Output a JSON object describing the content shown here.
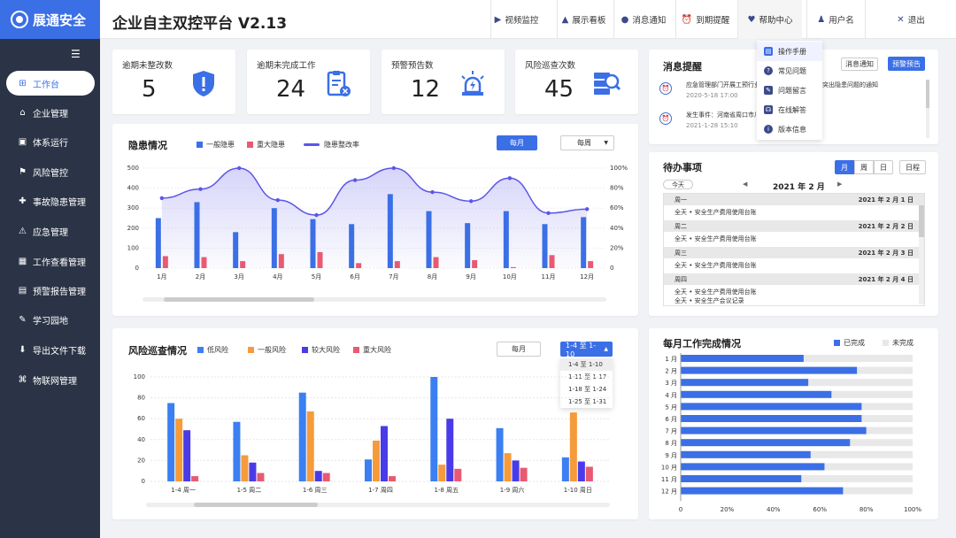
{
  "app": {
    "logo": "展通安全",
    "title": "企业自主双控平台 V2.13"
  },
  "topnav": [
    {
      "label": "视频监控",
      "icon": "video-icon"
    },
    {
      "label": "展示看板",
      "icon": "board-icon"
    },
    {
      "label": "消息通知",
      "icon": "message-icon"
    },
    {
      "label": "到期提醒",
      "icon": "alarm-icon"
    },
    {
      "label": "帮助中心",
      "icon": "heart-icon"
    },
    {
      "label": "用户名",
      "icon": "user-icon"
    },
    {
      "label": "退出",
      "icon": "close-icon"
    }
  ],
  "help_menu": [
    {
      "label": "操作手册",
      "icon": "manual-icon",
      "color": "#3b6fe6"
    },
    {
      "label": "常见问题",
      "icon": "question-icon",
      "color": "#3b4a8a"
    },
    {
      "label": "问题留言",
      "icon": "edit-icon",
      "color": "#3b4a8a"
    },
    {
      "label": "在线解答",
      "icon": "headset-icon",
      "color": "#3b4a8a"
    },
    {
      "label": "版本信息",
      "icon": "info-icon",
      "color": "#3b4a8a"
    }
  ],
  "sidebar": [
    {
      "label": "工作台",
      "icon": "windows-icon",
      "active": true
    },
    {
      "label": "企业管理",
      "icon": "home-icon"
    },
    {
      "label": "体系运行",
      "icon": "system-icon"
    },
    {
      "label": "风险管控",
      "icon": "risk-icon"
    },
    {
      "label": "事故隐患管理",
      "icon": "accident-icon"
    },
    {
      "label": "应急管理",
      "icon": "emergency-icon"
    },
    {
      "label": "工作查看管理",
      "icon": "calendar-icon"
    },
    {
      "label": "预警报告管理",
      "icon": "report-icon"
    },
    {
      "label": "学习园地",
      "icon": "study-icon"
    },
    {
      "label": "导出文件下载",
      "icon": "download-icon"
    },
    {
      "label": "物联网管理",
      "icon": "iot-icon"
    }
  ],
  "stats": [
    {
      "label": "逾期未整改数",
      "value": "5",
      "icon": "shield-alert-icon"
    },
    {
      "label": "逾期未完成工作",
      "value": "24",
      "icon": "clipboard-x-icon"
    },
    {
      "label": "预警预告数",
      "value": "12",
      "icon": "siren-icon"
    },
    {
      "label": "风险巡查次数",
      "value": "45",
      "icon": "server-search-icon"
    }
  ],
  "hazard": {
    "title": "隐患情况",
    "legend": [
      "一般隐患",
      "重大隐患",
      "隐患整改率"
    ],
    "btn_monthly": "每月",
    "select_value": "每周",
    "colors": {
      "general": "#3b6fe6",
      "major": "#e85a72",
      "rate": "#5b55e8"
    }
  },
  "risk": {
    "title": "风险巡查情况",
    "legend": [
      "低风险",
      "一般风险",
      "较大风险",
      "重大风险"
    ],
    "btn_monthly": "每月",
    "select_value": "1-4 至 1-10",
    "options": [
      "1-4 至 1-10",
      "1-11 至 1-17",
      "1-18 至 1-24",
      "1-25 至 1-31"
    ],
    "colors": {
      "low": "#3b7ff2",
      "general": "#f59b3c",
      "big": "#4a3be8",
      "major": "#e85a72"
    }
  },
  "messages": {
    "title": "消息提醒",
    "btn_notice": "消息通知",
    "btn_warning": "预警预告",
    "items": [
      {
        "text": "应急管理部门开展工预行业……通报两个层面八类突出隐患问题的通知",
        "date": "2020-5-18    17:00"
      },
      {
        "text": "发生事件：河南省周口市川…………试",
        "date": "2021-1-28    15:10"
      }
    ]
  },
  "todo": {
    "title": "待办事项",
    "views": [
      "月",
      "周",
      "日"
    ],
    "btn_schedule": "日程",
    "today": "今天",
    "month": "2021 年 2 月",
    "days": [
      {
        "weekday": "周一",
        "date": "2021 年 2 月 1 日",
        "items": [
          "全天 • 安全生产费用使用台账"
        ]
      },
      {
        "weekday": "周二",
        "date": "2021 年 2 月 2 日",
        "items": [
          "全天 • 安全生产费用使用台账"
        ]
      },
      {
        "weekday": "周三",
        "date": "2021 年 2 月 3 日",
        "items": [
          "全天 • 安全生产费用使用台账"
        ]
      },
      {
        "weekday": "周四",
        "date": "2021 年 2 月 4 日",
        "items": [
          "全天 • 安全生产费用使用台账",
          "全天 • 安全生产会议记录"
        ]
      }
    ]
  },
  "monthly": {
    "title": "每月工作完成情况",
    "legend": [
      "已完成",
      "未完成"
    ],
    "colors": {
      "done": "#3b6fe6",
      "undone": "#e8e8e8"
    }
  },
  "chart_data": [
    {
      "type": "bar",
      "title": "隐患情况",
      "categories": [
        "1月",
        "2月",
        "3月",
        "4月",
        "5月",
        "6月",
        "7月",
        "8月",
        "9月",
        "10月",
        "11月",
        "12月"
      ],
      "series": [
        {
          "name": "一般隐患",
          "values": [
            250,
            330,
            180,
            300,
            245,
            220,
            370,
            285,
            225,
            285,
            220,
            255
          ]
        },
        {
          "name": "重大隐患",
          "values": [
            60,
            55,
            35,
            70,
            80,
            25,
            35,
            55,
            40,
            5,
            65,
            35
          ]
        },
        {
          "name": "隐患整改率",
          "values": [
            70,
            79,
            100,
            68,
            53,
            88,
            100,
            76,
            67,
            90,
            55,
            59
          ],
          "axis": "right",
          "type": "line"
        }
      ],
      "ylim": [
        0,
        500
      ],
      "yticks": [
        0,
        100,
        200,
        300,
        400,
        500
      ],
      "y2lim": [
        0,
        100
      ],
      "y2ticks": [
        "0",
        "20%",
        "40%",
        "60%",
        "80%",
        "100%"
      ],
      "grid": true
    },
    {
      "type": "bar",
      "title": "风险巡查情况",
      "categories": [
        "1-4  周一",
        "1-5  周二",
        "1-6  周三",
        "1-7  周四",
        "1-8  周五",
        "1-9  周六",
        "1-10  周日"
      ],
      "series": [
        {
          "name": "低风险",
          "values": [
            75,
            57,
            85,
            21,
            100,
            51,
            23
          ]
        },
        {
          "name": "一般风险",
          "values": [
            60,
            25,
            67,
            39,
            16,
            27,
            66
          ]
        },
        {
          "name": "较大风险",
          "values": [
            49,
            18,
            10,
            53,
            60,
            20,
            19
          ]
        },
        {
          "name": "重大风险",
          "values": [
            5,
            8,
            8,
            5,
            12,
            13,
            14
          ]
        }
      ],
      "ylim": [
        0,
        100
      ],
      "yticks": [
        0,
        20,
        40,
        60,
        80,
        100
      ],
      "grid": true
    },
    {
      "type": "bar",
      "title": "每月工作完成情况",
      "orientation": "horizontal",
      "categories": [
        "1 月",
        "2 月",
        "3 月",
        "4 月",
        "5 月",
        "6 月",
        "7 月",
        "8 月",
        "9 月",
        "10 月",
        "11 月",
        "12 月"
      ],
      "series": [
        {
          "name": "已完成",
          "values": [
            53,
            76,
            55,
            65,
            78,
            78,
            80,
            73,
            56,
            62,
            52,
            70
          ]
        },
        {
          "name": "未完成",
          "values": [
            47,
            24,
            45,
            35,
            22,
            22,
            20,
            27,
            44,
            38,
            48,
            30
          ]
        }
      ],
      "xlim": [
        0,
        100
      ],
      "xticks": [
        "0",
        "20%",
        "40%",
        "60%",
        "80%",
        "100%"
      ]
    }
  ]
}
